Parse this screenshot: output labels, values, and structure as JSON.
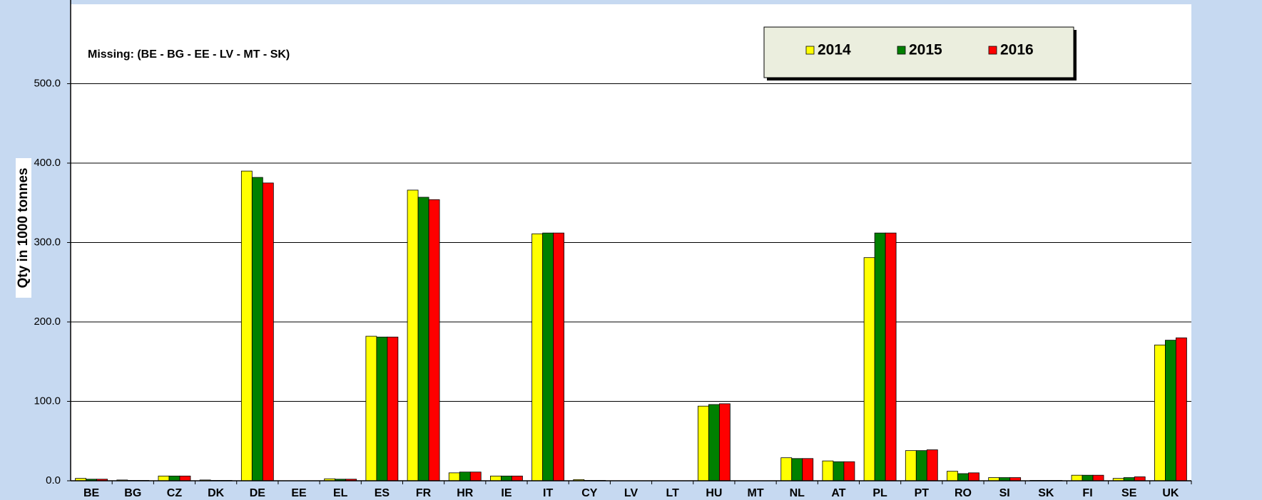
{
  "chart_data": {
    "type": "bar",
    "y_label": "Qty in 1000 tonnes",
    "annotation": "Missing: (BE - BG  - EE -  LV -  MT - SK)",
    "categories": [
      "BE",
      "BG",
      "CZ",
      "DK",
      "DE",
      "EE",
      "EL",
      "ES",
      "FR",
      "HR",
      "IE",
      "IT",
      "CY",
      "LV",
      "LT",
      "HU",
      "MT",
      "NL",
      "AT",
      "PL",
      "PT",
      "RO",
      "SI",
      "SK",
      "FI",
      "SE",
      "UK"
    ],
    "series": [
      {
        "name": "2014",
        "color": "#ffff00",
        "values": [
          3,
          1,
          6,
          1,
          390,
          null,
          2.5,
          182,
          366,
          10,
          6,
          311,
          1.5,
          null,
          0,
          94,
          null,
          29,
          25,
          281,
          38,
          12,
          4,
          0.5,
          7,
          3,
          171
        ]
      },
      {
        "name": "2015",
        "color": "#008000",
        "values": [
          2,
          0.5,
          6,
          0.5,
          382,
          null,
          2,
          181,
          357,
          11,
          6,
          312,
          0.5,
          null,
          0,
          96,
          null,
          28,
          24,
          312,
          38,
          9,
          4,
          0.5,
          7,
          4,
          177
        ]
      },
      {
        "name": "2016",
        "color": "#ff0000",
        "values": [
          2,
          0.5,
          6,
          0.5,
          375,
          null,
          2,
          181,
          354,
          11,
          6,
          312,
          0.5,
          null,
          0,
          97,
          null,
          28,
          24,
          312,
          39,
          10,
          4,
          0.5,
          7,
          5,
          180
        ]
      }
    ],
    "ylim": [
      0,
      600
    ],
    "yticks": [
      {
        "value": 0,
        "label": "0.0"
      },
      {
        "value": 100,
        "label": "100.0"
      },
      {
        "value": 200,
        "label": "200.0"
      },
      {
        "value": 300,
        "label": "300.0"
      },
      {
        "value": 400,
        "label": "400.0"
      },
      {
        "value": 500,
        "label": "500.0"
      }
    ],
    "grid": true
  }
}
